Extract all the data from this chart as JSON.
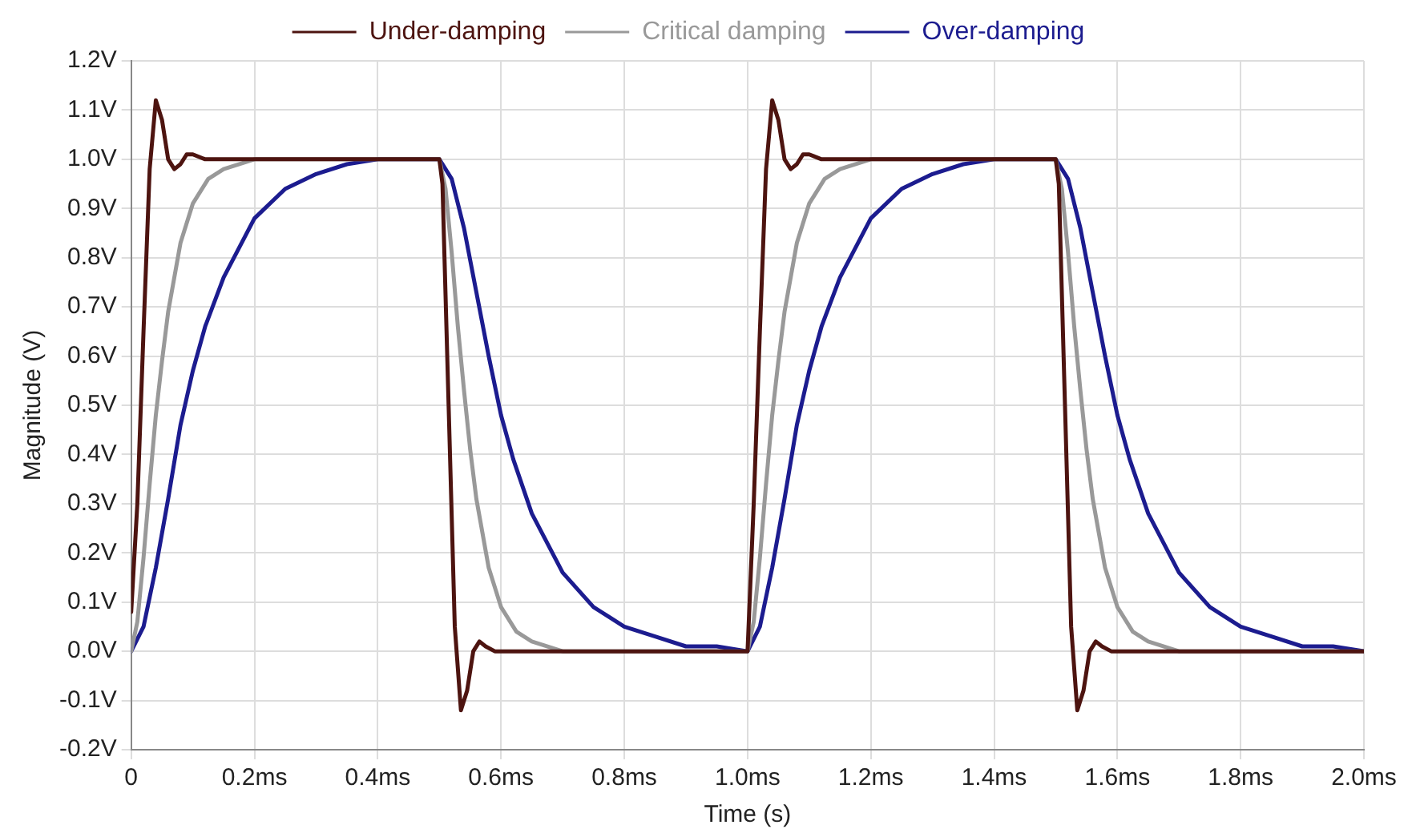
{
  "chart_data": {
    "type": "line",
    "xlabel": "Time (s)",
    "ylabel": "Magnitude (V)",
    "legend": "top",
    "grid": true,
    "marker": "none",
    "line_style": "solid",
    "xlim": [
      0,
      2.0
    ],
    "ylim": [
      -0.2,
      1.2
    ],
    "xticks": [
      {
        "value": 0,
        "label": "0"
      },
      {
        "value": 0.2,
        "label": "0.2ms"
      },
      {
        "value": 0.4,
        "label": "0.4ms"
      },
      {
        "value": 0.6,
        "label": "0.6ms"
      },
      {
        "value": 0.8,
        "label": "0.8ms"
      },
      {
        "value": 1.0,
        "label": "1.0ms"
      },
      {
        "value": 1.2,
        "label": "1.2ms"
      },
      {
        "value": 1.4,
        "label": "1.4ms"
      },
      {
        "value": 1.6,
        "label": "1.6ms"
      },
      {
        "value": 1.8,
        "label": "1.8ms"
      },
      {
        "value": 2.0,
        "label": "2.0ms"
      }
    ],
    "yticks": [
      {
        "value": -0.2,
        "label": "-0.2V"
      },
      {
        "value": -0.1,
        "label": "-0.1V"
      },
      {
        "value": 0,
        "label": "0.0V"
      },
      {
        "value": 0.1,
        "label": "0.1V"
      },
      {
        "value": 0.2,
        "label": "0.2V"
      },
      {
        "value": 0.3,
        "label": "0.3V"
      },
      {
        "value": 0.4,
        "label": "0.4V"
      },
      {
        "value": 0.5,
        "label": "0.5V"
      },
      {
        "value": 0.6,
        "label": "0.6V"
      },
      {
        "value": 0.7,
        "label": "0.7V"
      },
      {
        "value": 0.8,
        "label": "0.8V"
      },
      {
        "value": 0.9,
        "label": "0.9V"
      },
      {
        "value": 1.0,
        "label": "1.0V"
      },
      {
        "value": 1.1,
        "label": "1.1V"
      },
      {
        "value": 1.2,
        "label": "1.2V"
      }
    ],
    "series": [
      {
        "name": "Under-damping",
        "color": "#4d1410",
        "x": [
          0,
          0.01,
          0.02,
          0.03,
          0.04,
          0.05,
          0.06,
          0.07,
          0.08,
          0.09,
          0.1,
          0.12,
          0.5,
          0.505,
          0.515,
          0.525,
          0.535,
          0.545,
          0.555,
          0.565,
          0.575,
          0.59,
          1.0,
          1.01,
          1.02,
          1.03,
          1.04,
          1.05,
          1.06,
          1.07,
          1.08,
          1.09,
          1.1,
          1.12,
          1.5,
          1.505,
          1.515,
          1.525,
          1.535,
          1.545,
          1.555,
          1.565,
          1.575,
          1.59,
          2.0
        ],
        "values": [
          0.08,
          0.3,
          0.65,
          0.98,
          1.12,
          1.08,
          1.0,
          0.98,
          0.99,
          1.01,
          1.01,
          1.0,
          1.0,
          0.95,
          0.5,
          0.05,
          -0.12,
          -0.08,
          0.0,
          0.02,
          0.01,
          0.0,
          0.0,
          0.3,
          0.65,
          0.98,
          1.12,
          1.08,
          1.0,
          0.98,
          0.99,
          1.01,
          1.01,
          1.0,
          1.0,
          0.95,
          0.5,
          0.05,
          -0.12,
          -0.08,
          0.0,
          0.02,
          0.01,
          0.0,
          0.0
        ]
      },
      {
        "name": "Critical damping",
        "color": "#999999",
        "x": [
          0,
          0.01,
          0.02,
          0.03,
          0.04,
          0.05,
          0.06,
          0.08,
          0.1,
          0.125,
          0.15,
          0.2,
          0.25,
          0.5,
          0.51,
          0.52,
          0.53,
          0.54,
          0.55,
          0.56,
          0.58,
          0.6,
          0.625,
          0.65,
          0.7,
          0.75,
          1.0,
          1.01,
          1.02,
          1.03,
          1.04,
          1.05,
          1.06,
          1.08,
          1.1,
          1.125,
          1.15,
          1.2,
          1.25,
          1.5,
          1.51,
          1.52,
          1.53,
          1.54,
          1.55,
          1.56,
          1.58,
          1.6,
          1.625,
          1.65,
          1.7,
          1.75,
          2.0
        ],
        "values": [
          0,
          0.06,
          0.19,
          0.34,
          0.48,
          0.59,
          0.69,
          0.83,
          0.91,
          0.96,
          0.98,
          1.0,
          1.0,
          1.0,
          0.94,
          0.81,
          0.66,
          0.53,
          0.41,
          0.31,
          0.17,
          0.09,
          0.04,
          0.02,
          0.0,
          0,
          0,
          0.06,
          0.19,
          0.34,
          0.48,
          0.59,
          0.69,
          0.83,
          0.91,
          0.96,
          0.98,
          1.0,
          1.0,
          1.0,
          0.94,
          0.81,
          0.66,
          0.53,
          0.41,
          0.31,
          0.17,
          0.09,
          0.04,
          0.02,
          0.0,
          0,
          0
        ]
      },
      {
        "name": "Over-damping",
        "color": "#1c1c8f",
        "x": [
          0,
          0.02,
          0.04,
          0.06,
          0.08,
          0.1,
          0.12,
          0.15,
          0.2,
          0.25,
          0.3,
          0.35,
          0.4,
          0.5,
          0.52,
          0.54,
          0.56,
          0.58,
          0.6,
          0.62,
          0.65,
          0.7,
          0.75,
          0.8,
          0.85,
          0.9,
          0.95,
          1.0,
          1.02,
          1.04,
          1.06,
          1.08,
          1.1,
          1.12,
          1.15,
          1.2,
          1.25,
          1.3,
          1.35,
          1.4,
          1.5,
          1.52,
          1.54,
          1.56,
          1.58,
          1.6,
          1.62,
          1.65,
          1.7,
          1.75,
          1.8,
          1.85,
          1.9,
          1.95,
          2.0
        ],
        "values": [
          0,
          0.05,
          0.17,
          0.31,
          0.46,
          0.57,
          0.66,
          0.76,
          0.88,
          0.94,
          0.97,
          0.99,
          1.0,
          1.0,
          0.96,
          0.86,
          0.73,
          0.6,
          0.48,
          0.39,
          0.28,
          0.16,
          0.09,
          0.05,
          0.03,
          0.01,
          0.01,
          0,
          0.05,
          0.17,
          0.31,
          0.46,
          0.57,
          0.66,
          0.76,
          0.88,
          0.94,
          0.97,
          0.99,
          1.0,
          1.0,
          0.96,
          0.86,
          0.73,
          0.6,
          0.48,
          0.39,
          0.28,
          0.16,
          0.09,
          0.05,
          0.03,
          0.01,
          0.01,
          0
        ]
      }
    ]
  }
}
